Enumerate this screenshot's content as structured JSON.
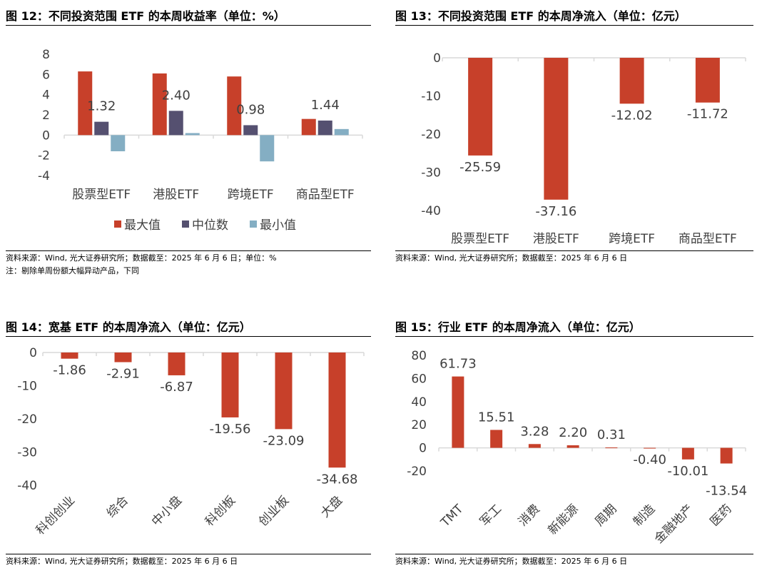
{
  "colors": {
    "max": "#C7402A",
    "median": "#555070",
    "min": "#84AEC3",
    "bar": "#C7402A",
    "axis": "#D9D9D9",
    "text": "#404040"
  },
  "chart_data": [
    {
      "id": "fig12",
      "type": "bar",
      "title": "图 12：不同投资范围 ETF 的本周收益率（单位：%）",
      "categories": [
        "股票型ETF",
        "港股ETF",
        "跨境ETF",
        "商品型ETF"
      ],
      "series": [
        {
          "name": "最大值",
          "values": [
            6.3,
            6.1,
            5.8,
            1.6
          ]
        },
        {
          "name": "中位数",
          "values": [
            1.32,
            2.4,
            0.98,
            1.44
          ]
        },
        {
          "name": "最小值",
          "values": [
            -1.6,
            0.2,
            -2.6,
            0.6
          ]
        }
      ],
      "data_labels": [
        "1.32",
        "2.40",
        "0.98",
        "1.44"
      ],
      "ylim": [
        -4,
        8
      ],
      "yticks": [
        "8",
        "6",
        "4",
        "2",
        "0",
        "-2",
        "-4"
      ],
      "legend": "bottom",
      "grid": false,
      "source": "资料来源：Wind, 光大证券研究所；数据截至：2025 年 6 月 6 日；单位：%",
      "note": "注：剔除单周份额大幅异动产品，下同"
    },
    {
      "id": "fig13",
      "type": "bar",
      "title": "图 13：不同投资范围 ETF 的本周净流入（单位：亿元）",
      "categories": [
        "股票型ETF",
        "港股ETF",
        "跨境ETF",
        "商品型ETF"
      ],
      "values": [
        -25.59,
        -37.16,
        -12.02,
        -11.72
      ],
      "data_labels": [
        "-25.59",
        "-37.16",
        "-12.02",
        "-11.72"
      ],
      "ylim": [
        -40,
        0
      ],
      "yticks": [
        "0",
        "-10",
        "-20",
        "-30",
        "-40"
      ],
      "grid": false,
      "source": "资料来源：Wind, 光大证券研究所；数据截至：2025 年 6 月 6 日"
    },
    {
      "id": "fig14",
      "type": "bar",
      "title": "图 14：宽基 ETF 的本周净流入（单位：亿元）",
      "categories": [
        "科创创业",
        "综合",
        "中小盘",
        "科创板",
        "创业板",
        "大盘"
      ],
      "values": [
        -1.86,
        -2.91,
        -6.87,
        -19.56,
        -23.09,
        -34.68
      ],
      "data_labels": [
        "-1.86",
        "-2.91",
        "-6.87",
        "-19.56",
        "-23.09",
        "-34.68"
      ],
      "ylim": [
        -40,
        0
      ],
      "yticks": [
        "0",
        "-10",
        "-20",
        "-30",
        "-40"
      ],
      "grid": false,
      "source": "资料来源：Wind, 光大证券研究所；数据截至：2025 年 6 月 6 日"
    },
    {
      "id": "fig15",
      "type": "bar",
      "title": "图 15：行业 ETF 的本周净流入（单位：亿元）",
      "categories": [
        "TMT",
        "军工",
        "消费",
        "新能源",
        "周期",
        "制造",
        "金融地产",
        "医药"
      ],
      "values": [
        61.73,
        15.51,
        3.28,
        2.2,
        0.31,
        -0.4,
        -10.01,
        -13.54
      ],
      "data_labels": [
        "61.73",
        "15.51",
        "3.28",
        "2.20",
        "0.31",
        "-0.40",
        "-10.01",
        "-13.54"
      ],
      "ylim": [
        -20,
        80
      ],
      "yticks": [
        "80",
        "60",
        "40",
        "20",
        "0",
        "-20"
      ],
      "grid": false,
      "source": "资料来源：Wind, 光大证券研究所；数据截至：2025 年 6 月 6 日"
    }
  ]
}
